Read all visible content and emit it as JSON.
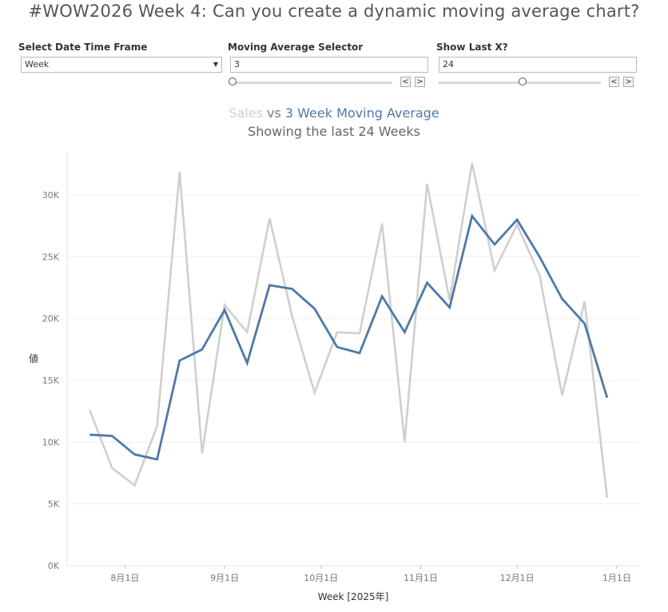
{
  "dashboard": {
    "title": "#WOW2026 Week 4: Can you create a dynamic moving average chart?"
  },
  "controls": {
    "date_frame": {
      "label": "Select Date Time Frame",
      "value": "Week"
    },
    "moving_average": {
      "label": "Moving Average Selector",
      "value": "3",
      "slider_fraction": 0.0
    },
    "show_last": {
      "label": "Show Last X?",
      "value": "24",
      "slider_fraction": 0.5
    },
    "prev_glyph": "<",
    "next_glyph": ">"
  },
  "chart_title": {
    "sales": "Sales",
    "vs": " vs ",
    "moving_average": "3 Week Moving Average",
    "subtitle": "Showing the last 24 Weeks"
  },
  "colors": {
    "sales": "#cfcfcf",
    "moving_average": "#4e79a7",
    "grid": "#efefef"
  },
  "chart_data": {
    "type": "line",
    "xlabel": "Week [2025年]",
    "ylabel": "値",
    "ylim": [
      0,
      33500
    ],
    "yticks": [
      {
        "value": 0,
        "label": "0K"
      },
      {
        "value": 5000,
        "label": "5K"
      },
      {
        "value": 10000,
        "label": "10K"
      },
      {
        "value": 15000,
        "label": "15K"
      },
      {
        "value": 20000,
        "label": "20K"
      },
      {
        "value": 25000,
        "label": "25K"
      },
      {
        "value": 30000,
        "label": "30K"
      }
    ],
    "xlim": [
      "2025-07-14",
      "2026-01-08"
    ],
    "xticks": [
      {
        "value": "2025-08-01",
        "label": "8月1日"
      },
      {
        "value": "2025-09-01",
        "label": "9月1日"
      },
      {
        "value": "2025-10-01",
        "label": "10月1日"
      },
      {
        "value": "2025-11-01",
        "label": "11月1日"
      },
      {
        "value": "2025-12-01",
        "label": "12月1日"
      },
      {
        "value": "2026-01-01",
        "label": "1月1日"
      }
    ],
    "x": [
      "2025-07-21",
      "2025-07-28",
      "2025-08-04",
      "2025-08-11",
      "2025-08-18",
      "2025-08-25",
      "2025-09-01",
      "2025-09-08",
      "2025-09-15",
      "2025-09-22",
      "2025-09-29",
      "2025-10-06",
      "2025-10-13",
      "2025-10-20",
      "2025-10-27",
      "2025-11-03",
      "2025-11-10",
      "2025-11-17",
      "2025-11-24",
      "2025-12-01",
      "2025-12-08",
      "2025-12-15",
      "2025-12-22",
      "2025-12-29"
    ],
    "grid": true,
    "series": [
      {
        "name": "Sales",
        "values": [
          12600,
          7900,
          6500,
          11300,
          31900,
          9100,
          21100,
          18900,
          28100,
          20200,
          14000,
          18900,
          18800,
          27700,
          10000,
          30900,
          21500,
          32600,
          23900,
          27600,
          23500,
          13800,
          21400,
          5500
        ]
      },
      {
        "name": "3 Week Moving Average",
        "values": [
          10600,
          10500,
          9000,
          8600,
          16600,
          17500,
          20700,
          16400,
          22700,
          22400,
          20800,
          17700,
          17200,
          21800,
          18900,
          22900,
          20900,
          28300,
          26000,
          28000,
          25000,
          21600,
          19600,
          13600
        ]
      }
    ]
  }
}
